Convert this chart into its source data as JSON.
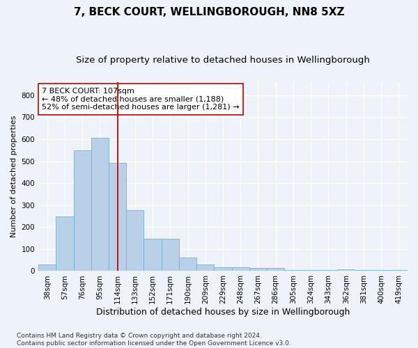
{
  "title1": "7, BECK COURT, WELLINGBOROUGH, NN8 5XZ",
  "title2": "Size of property relative to detached houses in Wellingborough",
  "xlabel": "Distribution of detached houses by size in Wellingborough",
  "ylabel": "Number of detached properties",
  "categories": [
    "38sqm",
    "57sqm",
    "76sqm",
    "95sqm",
    "114sqm",
    "133sqm",
    "152sqm",
    "171sqm",
    "190sqm",
    "209sqm",
    "229sqm",
    "248sqm",
    "267sqm",
    "286sqm",
    "305sqm",
    "324sqm",
    "343sqm",
    "362sqm",
    "381sqm",
    "400sqm",
    "419sqm"
  ],
  "values": [
    30,
    248,
    548,
    607,
    493,
    277,
    147,
    147,
    62,
    30,
    18,
    18,
    13,
    13,
    5,
    5,
    5,
    8,
    5,
    5,
    5
  ],
  "bar_color": "#b8d0e8",
  "bar_edge_color": "#7aafd4",
  "vline_x": 4,
  "vline_color": "#cc0000",
  "annotation_text": "7 BECK COURT: 107sqm\n← 48% of detached houses are smaller (1,188)\n52% of semi-detached houses are larger (1,281) →",
  "annotation_box_color": "#ffffff",
  "annotation_box_edge": "#cc0000",
  "footnote": "Contains HM Land Registry data © Crown copyright and database right 2024.\nContains public sector information licensed under the Open Government Licence v3.0.",
  "ylim": [
    0,
    860
  ],
  "yticks": [
    0,
    100,
    200,
    300,
    400,
    500,
    600,
    700,
    800
  ],
  "background_color": "#eef2f9",
  "grid_color": "#ffffff",
  "title1_fontsize": 11,
  "title2_fontsize": 9.5,
  "xlabel_fontsize": 9,
  "ylabel_fontsize": 8,
  "tick_fontsize": 7.5,
  "annotation_fontsize": 8,
  "footnote_fontsize": 6.5
}
